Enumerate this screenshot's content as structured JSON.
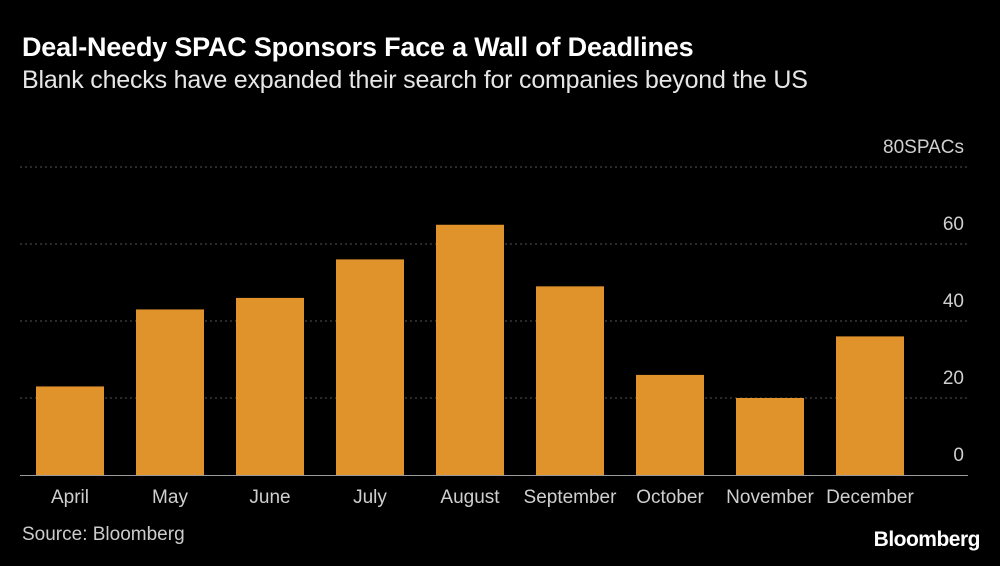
{
  "title": "Deal-Needy SPAC Sponsors Face a Wall of Deadlines",
  "subtitle": "Blank checks have expanded their search for companies beyond the US",
  "source": "Source: Bloomberg",
  "brand": "Bloomberg",
  "colors": {
    "bar": "#e0922b",
    "grid": "#555555",
    "axis_text": "#cfcfcf",
    "background": "#000000"
  },
  "chart_data": {
    "type": "bar",
    "title": "Deal-Needy SPAC Sponsors Face a Wall of Deadlines",
    "subtitle": "Blank checks have expanded their search for companies beyond the US",
    "xlabel": "",
    "ylabel": "SPACs",
    "categories": [
      "April",
      "May",
      "June",
      "July",
      "August",
      "September",
      "October",
      "November",
      "December"
    ],
    "values": [
      23,
      43,
      46,
      56,
      65,
      49,
      26,
      20,
      36
    ],
    "ylim": [
      0,
      80
    ],
    "yticks": [
      {
        "value": 80,
        "label": "80SPACs"
      },
      {
        "value": 60,
        "label": "60"
      },
      {
        "value": 40,
        "label": "40"
      },
      {
        "value": 20,
        "label": "20"
      },
      {
        "value": 0,
        "label": "0"
      }
    ],
    "grid": true,
    "legend": "none"
  }
}
